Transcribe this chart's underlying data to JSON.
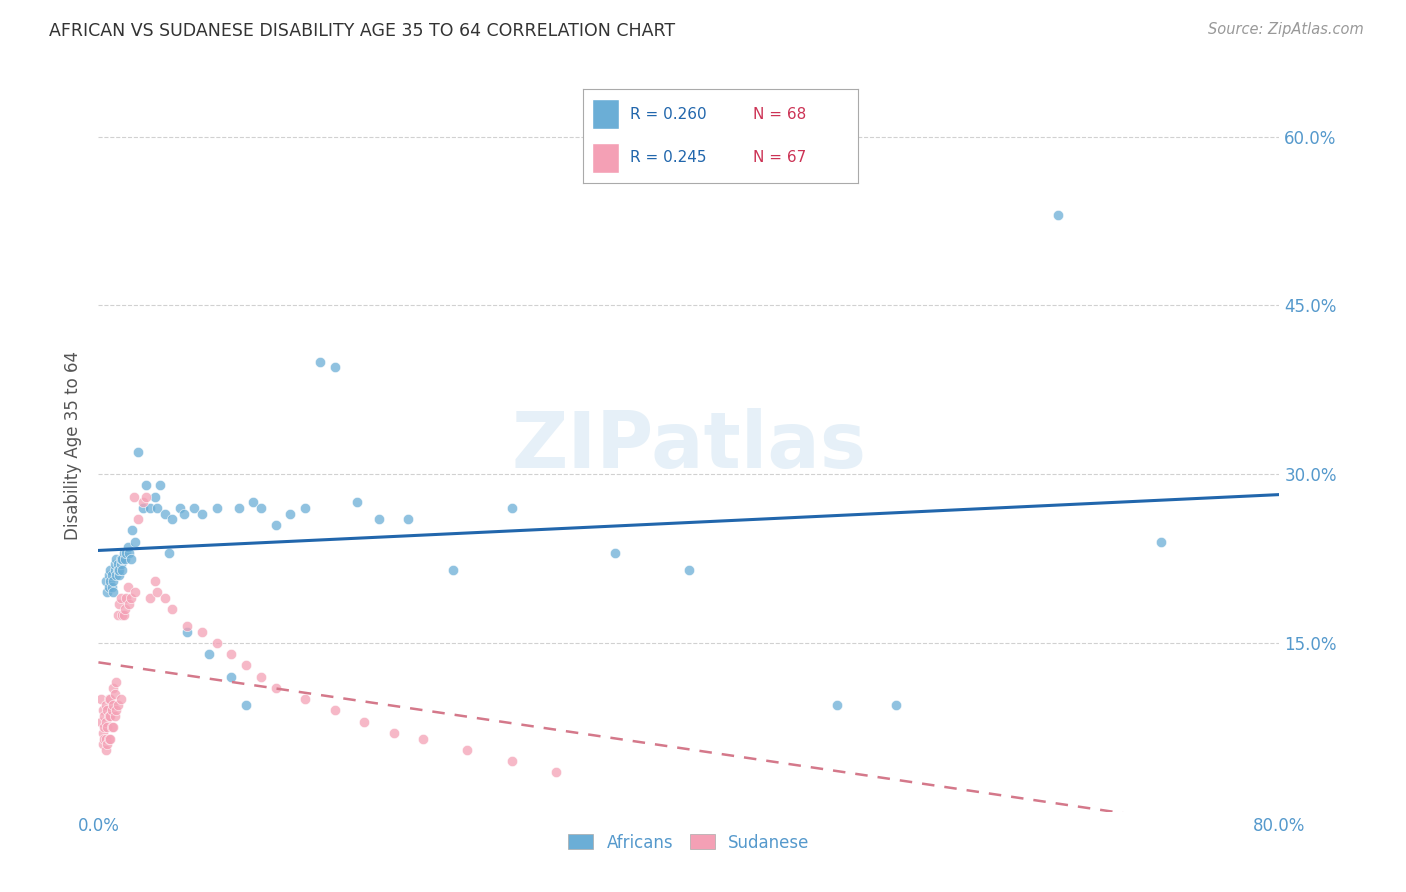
{
  "title": "AFRICAN VS SUDANESE DISABILITY AGE 35 TO 64 CORRELATION CHART",
  "source": "Source: ZipAtlas.com",
  "ylabel": "Disability Age 35 to 64",
  "xlim": [
    0.0,
    0.8
  ],
  "ylim": [
    0.0,
    0.65
  ],
  "xtick_positions": [
    0.0,
    0.2,
    0.4,
    0.6,
    0.8
  ],
  "xticklabels": [
    "0.0%",
    "",
    "",
    "",
    "80.0%"
  ],
  "ytick_positions": [
    0.15,
    0.3,
    0.45,
    0.6
  ],
  "yticklabels": [
    "15.0%",
    "30.0%",
    "45.0%",
    "60.0%"
  ],
  "african_color": "#6baed6",
  "sudanese_color": "#f4a0b5",
  "african_line_color": "#2166ac",
  "sudanese_line_color": "#d4788a",
  "legend_R_african": "R = 0.260",
  "legend_N_african": "N = 68",
  "legend_R_sudanese": "R = 0.245",
  "legend_N_sudanese": "N = 67",
  "background_color": "#ffffff",
  "grid_color": "#cccccc",
  "tick_color": "#5599cc",
  "watermark": "ZIPatlas",
  "african_x": [
    0.005,
    0.006,
    0.007,
    0.007,
    0.008,
    0.008,
    0.009,
    0.009,
    0.01,
    0.01,
    0.011,
    0.011,
    0.012,
    0.012,
    0.013,
    0.013,
    0.014,
    0.014,
    0.015,
    0.015,
    0.016,
    0.016,
    0.017,
    0.018,
    0.019,
    0.02,
    0.021,
    0.022,
    0.023,
    0.025,
    0.027,
    0.03,
    0.032,
    0.035,
    0.038,
    0.04,
    0.042,
    0.045,
    0.048,
    0.05,
    0.055,
    0.058,
    0.06,
    0.065,
    0.07,
    0.075,
    0.08,
    0.09,
    0.095,
    0.1,
    0.105,
    0.11,
    0.12,
    0.13,
    0.14,
    0.15,
    0.16,
    0.175,
    0.19,
    0.21,
    0.24,
    0.28,
    0.35,
    0.4,
    0.5,
    0.54,
    0.65,
    0.72
  ],
  "african_y": [
    0.205,
    0.195,
    0.21,
    0.2,
    0.205,
    0.215,
    0.2,
    0.21,
    0.195,
    0.205,
    0.215,
    0.22,
    0.21,
    0.225,
    0.215,
    0.22,
    0.21,
    0.215,
    0.22,
    0.225,
    0.215,
    0.225,
    0.23,
    0.225,
    0.23,
    0.235,
    0.23,
    0.225,
    0.25,
    0.24,
    0.32,
    0.27,
    0.29,
    0.27,
    0.28,
    0.27,
    0.29,
    0.265,
    0.23,
    0.26,
    0.27,
    0.265,
    0.16,
    0.27,
    0.265,
    0.14,
    0.27,
    0.12,
    0.27,
    0.095,
    0.275,
    0.27,
    0.255,
    0.265,
    0.27,
    0.4,
    0.395,
    0.275,
    0.26,
    0.26,
    0.215,
    0.27,
    0.23,
    0.215,
    0.095,
    0.095,
    0.53,
    0.24
  ],
  "sudanese_x": [
    0.002,
    0.002,
    0.003,
    0.003,
    0.003,
    0.004,
    0.004,
    0.004,
    0.005,
    0.005,
    0.005,
    0.005,
    0.006,
    0.006,
    0.006,
    0.007,
    0.007,
    0.007,
    0.008,
    0.008,
    0.008,
    0.009,
    0.009,
    0.01,
    0.01,
    0.01,
    0.011,
    0.011,
    0.012,
    0.012,
    0.013,
    0.013,
    0.014,
    0.015,
    0.015,
    0.016,
    0.017,
    0.018,
    0.019,
    0.02,
    0.021,
    0.022,
    0.024,
    0.025,
    0.027,
    0.03,
    0.032,
    0.035,
    0.038,
    0.04,
    0.045,
    0.05,
    0.06,
    0.07,
    0.08,
    0.09,
    0.1,
    0.11,
    0.12,
    0.14,
    0.16,
    0.18,
    0.2,
    0.22,
    0.25,
    0.28,
    0.31
  ],
  "sudanese_y": [
    0.1,
    0.08,
    0.09,
    0.07,
    0.06,
    0.085,
    0.075,
    0.065,
    0.095,
    0.08,
    0.065,
    0.055,
    0.09,
    0.075,
    0.06,
    0.1,
    0.085,
    0.065,
    0.1,
    0.085,
    0.065,
    0.09,
    0.075,
    0.11,
    0.095,
    0.075,
    0.105,
    0.085,
    0.115,
    0.09,
    0.175,
    0.095,
    0.185,
    0.19,
    0.1,
    0.175,
    0.175,
    0.18,
    0.19,
    0.2,
    0.185,
    0.19,
    0.28,
    0.195,
    0.26,
    0.275,
    0.28,
    0.19,
    0.205,
    0.195,
    0.19,
    0.18,
    0.165,
    0.16,
    0.15,
    0.14,
    0.13,
    0.12,
    0.11,
    0.1,
    0.09,
    0.08,
    0.07,
    0.065,
    0.055,
    0.045,
    0.035
  ]
}
